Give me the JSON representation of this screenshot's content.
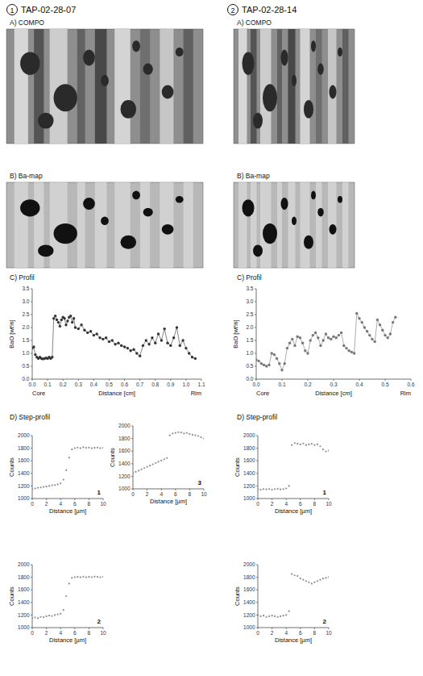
{
  "columns": [
    {
      "number": "1",
      "sample": "TAP-02-28-07",
      "compo": "A) COMPO",
      "bamap": "B) Ba-map",
      "step_title": "D) Step-profil"
    },
    {
      "number": "2",
      "sample": "TAP-02-28-14",
      "compo": "A) COMPO",
      "bamap": "B) Ba-map",
      "step_title": "D) Step-profil"
    }
  ],
  "chart_data": [
    {
      "type": "line",
      "title": "C) Profil",
      "x_label": "Distance [cm]",
      "y_label": "BaO [wt%]",
      "annotations": [
        "Core",
        "Rim"
      ],
      "x": [
        0,
        0.01,
        0.02,
        0.03,
        0.04,
        0.05,
        0.06,
        0.07,
        0.08,
        0.09,
        0.1,
        0.11,
        0.12,
        0.13,
        0.14,
        0.15,
        0.16,
        0.17,
        0.18,
        0.19,
        0.2,
        0.21,
        0.22,
        0.23,
        0.24,
        0.25,
        0.26,
        0.27,
        0.28,
        0.3,
        0.32,
        0.34,
        0.36,
        0.38,
        0.4,
        0.42,
        0.44,
        0.46,
        0.48,
        0.5,
        0.52,
        0.54,
        0.56,
        0.58,
        0.6,
        0.62,
        0.64,
        0.66,
        0.68,
        0.7,
        0.72,
        0.74,
        0.76,
        0.78,
        0.8,
        0.82,
        0.84,
        0.86,
        0.88,
        0.9,
        0.92,
        0.94,
        0.96,
        0.98,
        1,
        1.02,
        1.04,
        1.06
      ],
      "values": [
        1.2,
        1.25,
        0.95,
        0.85,
        0.8,
        0.85,
        0.8,
        0.78,
        0.8,
        0.82,
        0.8,
        0.85,
        0.8,
        0.85,
        2.35,
        2.45,
        2.3,
        2.2,
        2.05,
        2.3,
        2.4,
        2.35,
        2.1,
        2.25,
        2.4,
        2.45,
        2.2,
        2.35,
        2.0,
        1.95,
        2.1,
        1.9,
        1.8,
        1.85,
        1.7,
        1.75,
        1.6,
        1.55,
        1.6,
        1.45,
        1.5,
        1.35,
        1.4,
        1.3,
        1.25,
        1.2,
        1.1,
        1.15,
        1.0,
        0.9,
        1.3,
        1.5,
        1.35,
        1.6,
        1.4,
        1.75,
        1.5,
        1.95,
        1.4,
        1.3,
        1.6,
        2.0,
        1.3,
        1.5,
        1.2,
        1.0,
        0.85,
        0.8
      ],
      "xlim": [
        0,
        1.1
      ],
      "xticks": [
        {
          "value": 0,
          "label": "0.0"
        },
        0.1,
        0.2,
        0.3,
        0.4,
        0.5,
        0.6,
        0.7,
        0.8,
        0.9,
        {
          "value": 1,
          "label": "1.0"
        },
        1.1
      ],
      "ylim": [
        0,
        3.5
      ],
      "yticks": [
        {
          "value": 0,
          "label": "0.0"
        },
        0.5,
        {
          "value": 1,
          "label": "1.0"
        },
        1.5,
        {
          "value": 2,
          "label": "2.0"
        },
        2.5,
        {
          "value": 3,
          "label": "3.0"
        },
        3.5
      ],
      "color": "#333333",
      "marker": "circle",
      "line_style": "solid",
      "grid": false
    },
    {
      "type": "line",
      "title": "C) Profil",
      "x_label": "Distance [cm]",
      "y_label": "BaO [wt%]",
      "annotations": [
        "Core",
        "Rim"
      ],
      "x": [
        0,
        0.01,
        0.02,
        0.03,
        0.04,
        0.05,
        0.06,
        0.07,
        0.08,
        0.09,
        0.1,
        0.11,
        0.12,
        0.13,
        0.14,
        0.15,
        0.16,
        0.17,
        0.18,
        0.19,
        0.2,
        0.21,
        0.22,
        0.23,
        0.24,
        0.25,
        0.26,
        0.27,
        0.28,
        0.29,
        0.3,
        0.31,
        0.32,
        0.33,
        0.34,
        0.35,
        0.36,
        0.37,
        0.38,
        0.39,
        0.4,
        0.41,
        0.42,
        0.43,
        0.44,
        0.45,
        0.46,
        0.47,
        0.48,
        0.49,
        0.5,
        0.51,
        0.52,
        0.53,
        0.54
      ],
      "values": [
        0.75,
        0.7,
        0.6,
        0.55,
        0.5,
        0.55,
        1.0,
        0.95,
        0.8,
        0.6,
        0.35,
        0.6,
        1.2,
        1.4,
        1.55,
        1.3,
        1.65,
        1.6,
        1.4,
        1.1,
        1.0,
        1.5,
        1.7,
        1.8,
        1.6,
        1.3,
        1.5,
        1.75,
        1.6,
        1.55,
        1.65,
        1.6,
        1.7,
        1.8,
        1.3,
        1.2,
        1.1,
        1.05,
        1.0,
        2.55,
        2.35,
        2.2,
        2.0,
        1.85,
        1.7,
        1.55,
        1.45,
        2.3,
        2.1,
        1.9,
        1.7,
        1.6,
        1.75,
        2.2,
        2.4
      ],
      "xlim": [
        0,
        0.6
      ],
      "xticks": [
        {
          "value": 0,
          "label": "0.0"
        },
        0.1,
        0.2,
        0.3,
        0.4,
        0.5,
        0.6
      ],
      "ylim": [
        0,
        3.5
      ],
      "yticks": [
        {
          "value": 0,
          "label": "0.0"
        },
        0.5,
        {
          "value": 1,
          "label": "1.0"
        },
        1.5,
        {
          "value": 2,
          "label": "2.0"
        },
        2.5,
        {
          "value": 3,
          "label": "3.0"
        },
        3.5
      ],
      "color": "#777777",
      "marker": "circle",
      "line_style": "solid",
      "grid": false
    },
    {
      "type": "line",
      "title": "1",
      "x_label": "Distance [µm]",
      "y_label": "Counts",
      "x": [
        0,
        0.4,
        0.8,
        1.2,
        1.6,
        2,
        2.4,
        2.8,
        3.2,
        3.6,
        4,
        4.4,
        4.8,
        5.2,
        5.6,
        6,
        6.4,
        6.8,
        7.2,
        7.6,
        8,
        8.4,
        8.8,
        9.2,
        9.6,
        10
      ],
      "values": [
        1150,
        1160,
        1170,
        1175,
        1185,
        1190,
        1200,
        1210,
        1215,
        1225,
        1240,
        1300,
        1450,
        1650,
        1780,
        1800,
        1810,
        1800,
        1815,
        1805,
        1810,
        1800,
        1805,
        1810,
        1800,
        1805
      ],
      "xlim": [
        0,
        10
      ],
      "xticks": [
        0,
        2,
        4,
        6,
        8,
        10
      ],
      "ylim": [
        1000,
        2000
      ],
      "yticks": [
        1000,
        1200,
        1400,
        1600,
        1800,
        2000
      ],
      "color": "#8c8c8c",
      "marker": "dot",
      "line_style": "none",
      "grid": false
    },
    {
      "type": "line",
      "title": "3",
      "x_label": "Distance [µm]",
      "y_label": "Counts",
      "x": [
        0,
        0.4,
        0.8,
        1.2,
        1.6,
        2,
        2.4,
        2.8,
        3.2,
        3.6,
        4,
        4.4,
        4.8,
        5.2,
        5.6,
        6,
        6.4,
        6.8,
        7.2,
        7.6,
        8,
        8.4,
        8.8,
        9.2,
        9.6,
        10
      ],
      "values": [
        1250,
        1270,
        1290,
        1310,
        1330,
        1350,
        1370,
        1390,
        1410,
        1430,
        1450,
        1470,
        1490,
        1850,
        1880,
        1890,
        1900,
        1895,
        1880,
        1890,
        1870,
        1860,
        1850,
        1840,
        1820,
        1800
      ],
      "xlim": [
        0,
        10
      ],
      "xticks": [
        0,
        2,
        4,
        6,
        8,
        10
      ],
      "ylim": [
        1000,
        2000
      ],
      "yticks": [
        1000,
        1200,
        1400,
        1600,
        1800,
        2000
      ],
      "color": "#8c8c8c",
      "marker": "dot",
      "line_style": "none",
      "grid": false
    },
    {
      "type": "line",
      "title": "2",
      "x_label": "Distance [µm]",
      "y_label": "Counts",
      "x": [
        0,
        0.4,
        0.8,
        1.2,
        1.6,
        2,
        2.4,
        2.8,
        3.2,
        3.6,
        4,
        4.4,
        4.8,
        5.2,
        5.6,
        6,
        6.4,
        6.8,
        7.2,
        7.6,
        8,
        8.4,
        8.8,
        9.2,
        9.6,
        10
      ],
      "values": [
        1150,
        1160,
        1150,
        1170,
        1165,
        1180,
        1190,
        1185,
        1200,
        1210,
        1220,
        1280,
        1500,
        1700,
        1790,
        1800,
        1805,
        1800,
        1810,
        1800,
        1805,
        1800,
        1810,
        1805,
        1800,
        1810
      ],
      "xlim": [
        0,
        10
      ],
      "xticks": [
        0,
        2,
        4,
        6,
        8,
        10
      ],
      "ylim": [
        1000,
        2000
      ],
      "yticks": [
        1000,
        1200,
        1400,
        1600,
        1800,
        2000
      ],
      "color": "#8c8c8c",
      "marker": "dot",
      "line_style": "none",
      "grid": false
    },
    {
      "type": "line",
      "title": "1",
      "x_label": "Distance [µm]",
      "y_label": "Counts",
      "x": [
        0,
        0.4,
        0.8,
        1.2,
        1.6,
        2,
        2.4,
        2.8,
        3.2,
        3.6,
        4,
        4.4,
        4.8,
        5.2,
        5.6,
        6,
        6.4,
        6.8,
        7.2,
        7.6,
        8,
        8.4,
        8.8,
        9.2,
        9.6,
        10
      ],
      "values": [
        1150,
        1140,
        1150,
        1145,
        1150,
        1140,
        1150,
        1155,
        1145,
        1150,
        1160,
        1200,
        1850,
        1880,
        1870,
        1860,
        1875,
        1850,
        1860,
        1870,
        1850,
        1860,
        1830,
        1780,
        1750,
        1760
      ],
      "xlim": [
        0,
        10
      ],
      "xticks": [
        0,
        2,
        4,
        6,
        8,
        10
      ],
      "ylim": [
        1000,
        2000
      ],
      "yticks": [
        1000,
        1200,
        1400,
        1600,
        1800,
        2000
      ],
      "color": "#8c8c8c",
      "marker": "dot",
      "line_style": "none",
      "grid": false
    },
    {
      "type": "line",
      "title": "2",
      "x_label": "Distance [µm]",
      "y_label": "Counts",
      "x": [
        0,
        0.4,
        0.8,
        1.2,
        1.6,
        2,
        2.4,
        2.8,
        3.2,
        3.6,
        4,
        4.4,
        4.8,
        5.2,
        5.6,
        6,
        6.4,
        6.8,
        7.2,
        7.6,
        8,
        8.4,
        8.8,
        9.2,
        9.6,
        10
      ],
      "values": [
        1200,
        1180,
        1190,
        1170,
        1180,
        1190,
        1180,
        1170,
        1180,
        1190,
        1200,
        1260,
        1850,
        1830,
        1820,
        1780,
        1760,
        1740,
        1720,
        1700,
        1720,
        1740,
        1760,
        1780,
        1790,
        1800
      ],
      "xlim": [
        0,
        10
      ],
      "xticks": [
        0,
        2,
        4,
        6,
        8,
        10
      ],
      "ylim": [
        1000,
        2000
      ],
      "yticks": [
        1000,
        1200,
        1400,
        1600,
        1800,
        2000
      ],
      "color": "#8c8c8c",
      "marker": "dot",
      "line_style": "none",
      "grid": false
    }
  ]
}
